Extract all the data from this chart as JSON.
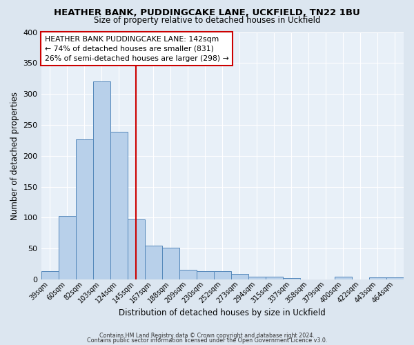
{
  "title": "HEATHER BANK, PUDDINGCAKE LANE, UCKFIELD, TN22 1BU",
  "subtitle": "Size of property relative to detached houses in Uckfield",
  "xlabel": "Distribution of detached houses by size in Uckfield",
  "ylabel": "Number of detached properties",
  "categories": [
    "39sqm",
    "60sqm",
    "82sqm",
    "103sqm",
    "124sqm",
    "145sqm",
    "167sqm",
    "188sqm",
    "209sqm",
    "230sqm",
    "252sqm",
    "273sqm",
    "294sqm",
    "315sqm",
    "337sqm",
    "358sqm",
    "379sqm",
    "400sqm",
    "422sqm",
    "443sqm",
    "464sqm"
  ],
  "values": [
    13,
    103,
    226,
    320,
    239,
    97,
    55,
    51,
    16,
    14,
    13,
    9,
    4,
    4,
    2,
    0,
    0,
    4,
    0,
    3,
    3
  ],
  "bar_color": "#b8d0ea",
  "bar_edge_color": "#5588bb",
  "vline_x": 5,
  "vline_color": "#cc0000",
  "ylim": [
    0,
    400
  ],
  "yticks": [
    0,
    50,
    100,
    150,
    200,
    250,
    300,
    350,
    400
  ],
  "annotation_title": "HEATHER BANK PUDDINGCAKE LANE: 142sqm",
  "annotation_line2": "← 74% of detached houses are smaller (831)",
  "annotation_line3": "26% of semi-detached houses are larger (298) →",
  "annotation_box_facecolor": "#ffffff",
  "annotation_box_edgecolor": "#cc0000",
  "footer_line1": "Contains HM Land Registry data © Crown copyright and database right 2024.",
  "footer_line2": "Contains public sector information licensed under the Open Government Licence v3.0.",
  "bg_color": "#dce6f0",
  "plot_bg_color": "#e8f0f8"
}
